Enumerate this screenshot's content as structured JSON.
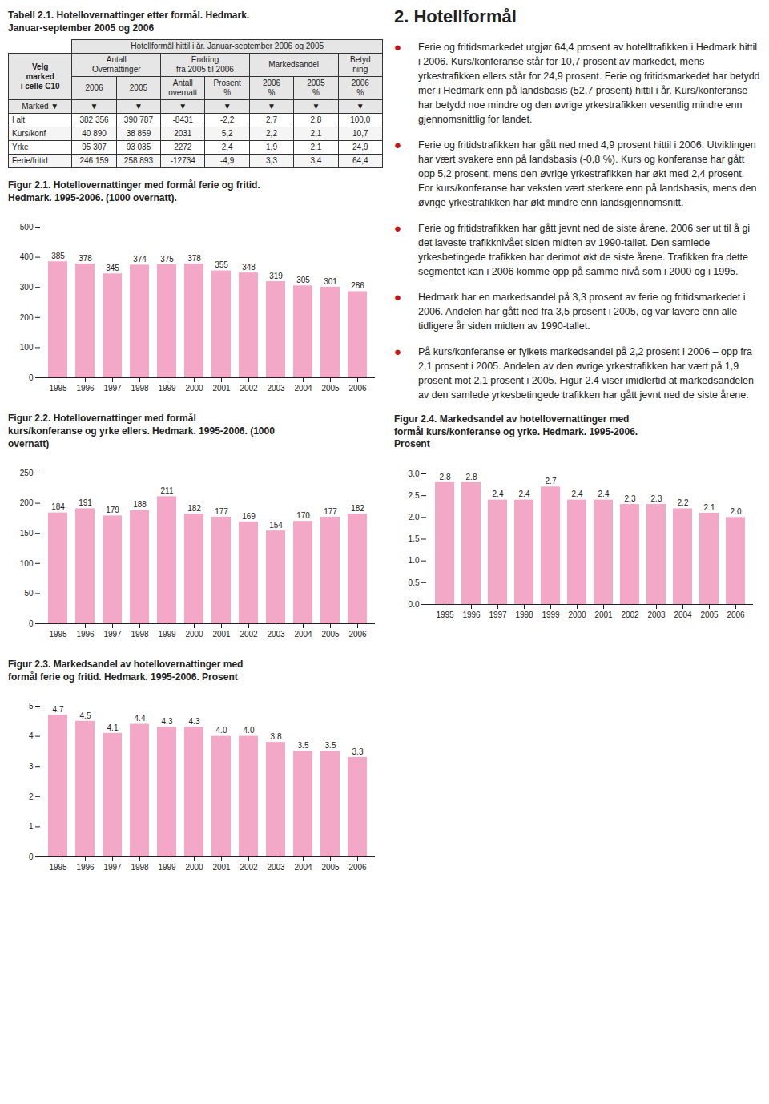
{
  "chart_data": [
    {
      "type": "table",
      "title": "Tabell 2.1. Hotellovernattinger etter formål. Hedmark.\nJanuar-september 2005 og 2006",
      "header": "Hotellformål hittil i år. Januar-september 2006 og 2005",
      "corner": "Velg\nmarked\ni celle C10",
      "groups": [
        {
          "label": "Antall\nOvernattinger",
          "span": 2
        },
        {
          "label": "Endring\nfra 2005 til 2006",
          "span": 2
        },
        {
          "label": "Markedsandel",
          "span": 2
        },
        {
          "label": "Betyd\nning",
          "span": 1
        }
      ],
      "columns": [
        "2006",
        "2005",
        "Antall\novernatt",
        "Prosent\n%",
        "2006\n%",
        "2005\n%",
        "2006\n%"
      ],
      "filter": [
        "Marked  ▼",
        "▼",
        "▼",
        "▼",
        "▼",
        "▼",
        "▼",
        "▼"
      ],
      "rows": [
        [
          "I alt",
          "382 356",
          "390 787",
          "-8431",
          "-2,2",
          "2,7",
          "2,8",
          "100,0"
        ],
        [
          "Kurs/konf",
          "40 890",
          "38 859",
          "2031",
          "5,2",
          "2,2",
          "2,1",
          "10,7"
        ],
        [
          "Yrke",
          "95 307",
          "93 035",
          "2272",
          "2,4",
          "1,9",
          "2,1",
          "24,9"
        ],
        [
          "Ferie/fritid",
          "246 159",
          "258 893",
          "-12734",
          "-4,9",
          "3,3",
          "3,4",
          "64,4"
        ]
      ]
    },
    {
      "type": "bar",
      "title": "Figur 2.1. Hotellovernattinger med formål ferie og fritid.\nHedmark. 1995-2006. (1000 overnatt).",
      "categories": [
        "1995",
        "1996",
        "1997",
        "1998",
        "1999",
        "2000",
        "2001",
        "2002",
        "2003",
        "2004",
        "2005",
        "2006"
      ],
      "values": [
        385,
        378,
        345,
        374,
        375,
        378,
        355,
        348,
        319,
        305,
        301,
        286
      ],
      "color": "#F4A8C7",
      "ylim": [
        0,
        500
      ],
      "yticks": [
        0,
        100,
        200,
        300,
        400,
        500
      ],
      "data_labels": true
    },
    {
      "type": "bar",
      "title": "Figur 2.2. Hotellovernattinger med formål\nkurs/konferanse og yrke ellers. Hedmark. 1995-2006. (1000\novernatt)",
      "categories": [
        "1995",
        "1996",
        "1997",
        "1998",
        "1999",
        "2000",
        "2001",
        "2002",
        "2003",
        "2004",
        "2005",
        "2006"
      ],
      "values": [
        184,
        191,
        179,
        188,
        211,
        182,
        177,
        169,
        154,
        170,
        177,
        182
      ],
      "color": "#F4A8C7",
      "ylim": [
        0,
        250
      ],
      "yticks": [
        0,
        50,
        100,
        150,
        200,
        250
      ],
      "data_labels": true
    },
    {
      "type": "bar",
      "title": "Figur 2.3. Markedsandel av hotellovernattinger med\nformål ferie og fritid. Hedmark. 1995-2006. Prosent",
      "categories": [
        "1995",
        "1996",
        "1997",
        "1998",
        "1999",
        "2000",
        "2001",
        "2002",
        "2003",
        "2004",
        "2005",
        "2006"
      ],
      "values": [
        4.7,
        4.5,
        4.1,
        4.4,
        4.3,
        4.3,
        4.0,
        4.0,
        3.8,
        3.5,
        3.5,
        3.3
      ],
      "value_labels": [
        "4.7",
        "4.5",
        "4.1",
        "4.4",
        "4.3",
        "4.3",
        "4.0",
        "4.0",
        "3.8",
        "3.5",
        "3.5",
        "3.3"
      ],
      "color": "#F4A8C7",
      "ylim": [
        0,
        5
      ],
      "yticks": [
        0,
        1,
        2,
        3,
        4,
        5
      ],
      "data_labels": true
    },
    {
      "type": "text",
      "title": "2. Hotellformål",
      "bullet": "●",
      "color": "#CC1111",
      "paragraphs": [
        "Ferie og fritidsmarkedet utgjør 64,4 prosent av hotelltrafikken i Hedmark hittil i 2006. Kurs/konferanse står for 10,7 prosent av markedet, mens yrkestrafikken ellers står for 24,9 prosent. Ferie og fritidsmarkedet har betydd mer i Hedmark enn på landsbasis (52,7 prosent) hittil i år. Kurs/konferanse har betydd noe mindre og den øvrige yrkestrafikken vesentlig mindre enn gjennomsnittlig for landet.",
        "Ferie og fritidstrafikken har gått ned med 4,9 prosent hittil i 2006. Utviklingen har vært svakere enn på landsbasis (-0,8 %). Kurs og konferanse har gått opp 5,2 prosent, mens den øvrige yrkestrafikken har økt med 2,4 prosent. For kurs/konferanse har veksten vært sterkere enn på landsbasis, mens den øvrige yrkestrafikken har økt mindre enn landsgjennomsnitt.",
        "Ferie og fritidstrafikken har gått jevnt ned de siste årene. 2006 ser ut til å gi det laveste trafikknivået siden midten av 1990-tallet. Den samlede yrkesbetingede trafikken har derimot økt de siste årene. Trafikken fra dette segmentet kan i 2006 komme opp på samme nivå som i 2000 og i 1995.",
        "Hedmark har en markedsandel på 3,3 prosent av ferie og fritidsmarkedet i 2006. Andelen har gått ned fra 3,5 prosent i 2005, og var lavere enn alle tidligere år siden midten av 1990-tallet.",
        "På kurs/konferanse er fylkets markedsandel på 2,2 prosent i 2006 – opp fra 2,1 prosent i 2005. Andelen av den øvrige yrkestrafikken har vært på 1,9 prosent mot 2,1 prosent i 2005. Figur 2.4 viser imidlertid at markedsandelen av den samlede yrkesbetingede trafikken har gått jevnt ned de siste årene."
      ]
    },
    {
      "type": "bar",
      "title": "Figur 2.4. Markedsandel av hotellovernattinger med\nformål kurs/konferanse og yrke. Hedmark. 1995-2006.\nProsent",
      "categories": [
        "1995",
        "1996",
        "1997",
        "1998",
        "1999",
        "2000",
        "2001",
        "2002",
        "2003",
        "2004",
        "2005",
        "2006"
      ],
      "values": [
        2.8,
        2.8,
        2.4,
        2.4,
        2.7,
        2.4,
        2.4,
        2.3,
        2.3,
        2.2,
        2.1,
        2.0
      ],
      "value_labels": [
        "2.8",
        "2.8",
        "2.4",
        "2.4",
        "2.7",
        "2.4",
        "2.4",
        "2.3",
        "2.3",
        "2.2",
        "2.1",
        "2.0"
      ],
      "color": "#F4A8C7",
      "ylim": [
        0,
        3
      ],
      "yticks": [
        {
          "value": 0,
          "label": "0.0"
        },
        0.5,
        {
          "value": 1,
          "label": "1.0"
        },
        1.5,
        {
          "value": 2,
          "label": "2.0"
        },
        2.5,
        {
          "value": 3,
          "label": "3.0"
        }
      ],
      "data_labels": true
    }
  ]
}
